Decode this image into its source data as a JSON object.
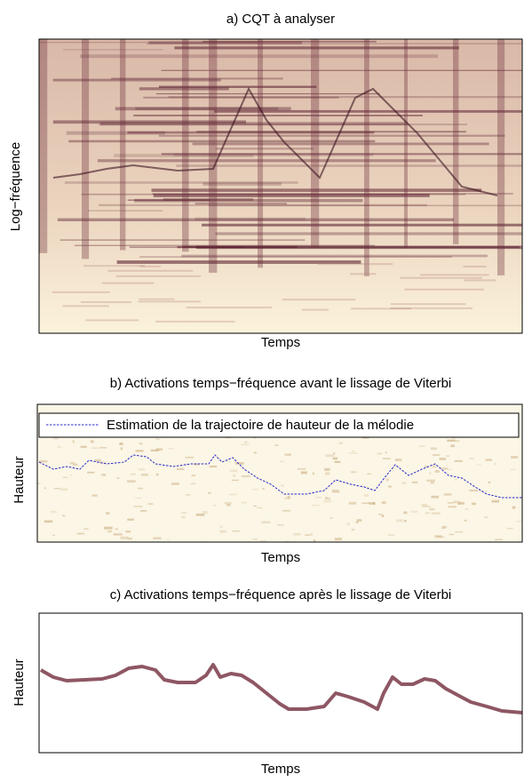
{
  "panels": [
    {
      "title": "a) CQT à analyser",
      "xlabel": "Temps",
      "ylabel": "Log−fréquence"
    },
    {
      "title": "b) Activations temps−fréquence avant le lissage de Viterbi",
      "xlabel": "Temps",
      "ylabel": "Hauteur",
      "legend": "Estimation de la trajectoire de hauteur de la mélodie"
    },
    {
      "title": "c) Activations temps−fréquence après le lissage de Viterbi",
      "xlabel": "Temps",
      "ylabel": "Hauteur"
    }
  ]
}
